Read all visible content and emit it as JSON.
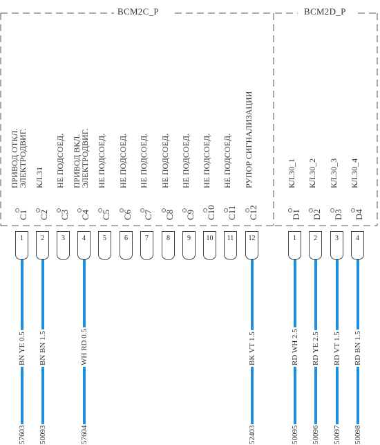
{
  "connectors": {
    "left": {
      "name": "BCM2C_P",
      "pins": [
        {
          "id": "C1",
          "num": "1",
          "func": "ПРИВОД ОТКЛ.|ЭЛЕКТРОДВИГ.",
          "wire": "BN YE 0.5",
          "circuit": "57603",
          "wired": true
        },
        {
          "id": "C2",
          "num": "2",
          "func": "КЛ.31",
          "wire": "BN BN 1.5",
          "circuit": "50093",
          "wired": true
        },
        {
          "id": "C3",
          "num": "3",
          "func": "НЕ ПОДСОЕД.",
          "wire": "",
          "circuit": "",
          "wired": false
        },
        {
          "id": "C4",
          "num": "4",
          "func": "ПРИВОД ВКЛ.|ЭЛЕКТРОДВИГ.",
          "wire": "WH RD 0.5",
          "circuit": "57604",
          "wired": true
        },
        {
          "id": "C5",
          "num": "5",
          "func": "НЕ ПОДСОЕД.",
          "wire": "",
          "circuit": "",
          "wired": false
        },
        {
          "id": "C6",
          "num": "6",
          "func": "НЕ ПОДСОЕД.",
          "wire": "",
          "circuit": "",
          "wired": false
        },
        {
          "id": "C7",
          "num": "7",
          "func": "НЕ ПОДСОЕД.",
          "wire": "",
          "circuit": "",
          "wired": false
        },
        {
          "id": "C8",
          "num": "8",
          "func": "НЕ ПОДСОЕД.",
          "wire": "",
          "circuit": "",
          "wired": false
        },
        {
          "id": "C9",
          "num": "9",
          "func": "НЕ ПОДСОЕД.",
          "wire": "",
          "circuit": "",
          "wired": false
        },
        {
          "id": "C10",
          "num": "10",
          "func": "НЕ ПОДСОЕД.",
          "wire": "",
          "circuit": "",
          "wired": false
        },
        {
          "id": "C11",
          "num": "11",
          "func": "НЕ ПОДСОЕД.",
          "wire": "",
          "circuit": "",
          "wired": false
        },
        {
          "id": "C12",
          "num": "12",
          "func": "РУПОР СИГНАЛИЗАЦИИ",
          "wire": "BK VT 1.5",
          "circuit": "52403",
          "wired": true
        }
      ]
    },
    "right": {
      "name": "BCM2D_P",
      "pins": [
        {
          "id": "D1",
          "num": "1",
          "func": "КЛ.30_1",
          "wire": "RD WH 2.5",
          "circuit": "50095",
          "wired": true
        },
        {
          "id": "D2",
          "num": "2",
          "func": "КЛ.30_2",
          "wire": "RD YE 2.5",
          "circuit": "50096",
          "wired": true
        },
        {
          "id": "D3",
          "num": "3",
          "func": "КЛ.30_3",
          "wire": "RD VT 1.5",
          "circuit": "50097",
          "wired": true
        },
        {
          "id": "D4",
          "num": "4",
          "func": "КЛ.30_4",
          "wire": "RD BN 1.5",
          "circuit": "50098",
          "wired": true
        }
      ]
    }
  },
  "colors": {
    "wire": "#1e8ee0",
    "line": "#555555"
  }
}
